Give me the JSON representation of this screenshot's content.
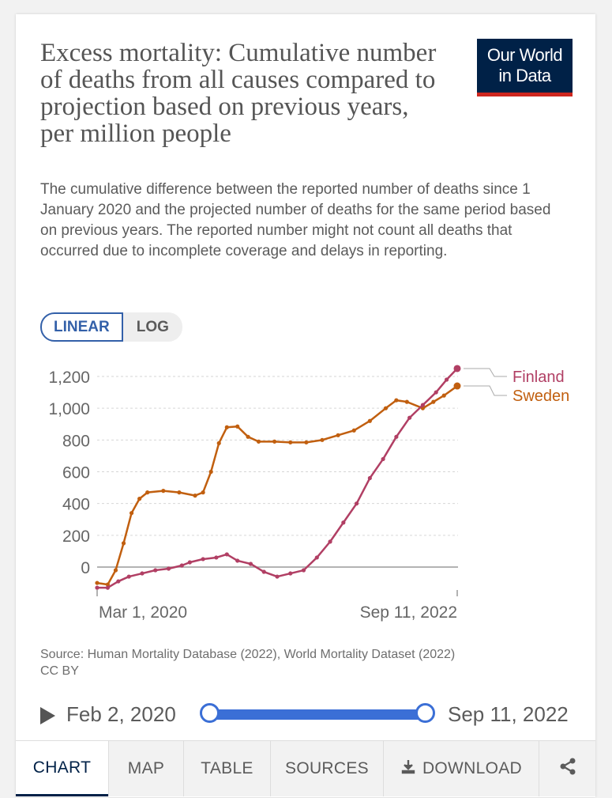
{
  "header": {
    "title": "Excess mortality: Cumulative number of deaths from all causes compared to projection based on previous years, per million people",
    "subtitle": "The cumulative difference between the reported number of deaths since 1 January 2020 and the projected number of deaths for the same period based on previous years. The reported number might not count all deaths that occurred due to incomplete coverage and delays in reporting.",
    "logo_line1": "Our World",
    "logo_line2": "in Data"
  },
  "scale_toggle": {
    "linear_label": "LINEAR",
    "log_label": "LOG",
    "selected": "LINEAR"
  },
  "chart_data": {
    "type": "line",
    "title": "Excess mortality: Cumulative number of deaths from all causes compared to projection based on previous years, per million people",
    "ylim": [
      -150,
      1300
    ],
    "yticks": [
      0,
      200,
      400,
      600,
      800,
      1000,
      1200
    ],
    "ytick_labels": [
      "0",
      "200",
      "400",
      "600",
      "800",
      "1,000",
      "1,200"
    ],
    "x_start": "2020-02-02",
    "x_end": "2022-09-11",
    "xtick_labels": [
      "Mar 1, 2020",
      "Sep 11, 2022"
    ],
    "grid": true,
    "legend_placement": "right",
    "series": [
      {
        "name": "Sweden",
        "color": "#c15f0f",
        "points": [
          [
            "2020-02-02",
            -100
          ],
          [
            "2020-03-01",
            -110
          ],
          [
            "2020-03-22",
            -20
          ],
          [
            "2020-04-12",
            150
          ],
          [
            "2020-05-03",
            340
          ],
          [
            "2020-05-24",
            430
          ],
          [
            "2020-06-14",
            470
          ],
          [
            "2020-07-26",
            480
          ],
          [
            "2020-09-06",
            470
          ],
          [
            "2020-10-18",
            450
          ],
          [
            "2020-11-08",
            470
          ],
          [
            "2020-11-29",
            600
          ],
          [
            "2020-12-20",
            780
          ],
          [
            "2021-01-10",
            880
          ],
          [
            "2021-02-07",
            885
          ],
          [
            "2021-03-07",
            820
          ],
          [
            "2021-04-04",
            790
          ],
          [
            "2021-05-16",
            790
          ],
          [
            "2021-06-27",
            785
          ],
          [
            "2021-08-08",
            785
          ],
          [
            "2021-09-19",
            800
          ],
          [
            "2021-10-31",
            830
          ],
          [
            "2021-12-12",
            860
          ],
          [
            "2022-01-23",
            920
          ],
          [
            "2022-03-06",
            1000
          ],
          [
            "2022-04-03",
            1050
          ],
          [
            "2022-05-01",
            1040
          ],
          [
            "2022-06-12",
            1000
          ],
          [
            "2022-07-10",
            1040
          ],
          [
            "2022-08-07",
            1080
          ],
          [
            "2022-09-11",
            1140
          ]
        ]
      },
      {
        "name": "Finland",
        "color": "#b13f64",
        "points": [
          [
            "2020-02-02",
            -130
          ],
          [
            "2020-03-01",
            -130
          ],
          [
            "2020-03-29",
            -90
          ],
          [
            "2020-04-26",
            -60
          ],
          [
            "2020-05-31",
            -40
          ],
          [
            "2020-07-05",
            -20
          ],
          [
            "2020-08-09",
            -10
          ],
          [
            "2020-09-13",
            10
          ],
          [
            "2020-10-04",
            30
          ],
          [
            "2020-11-08",
            50
          ],
          [
            "2020-12-13",
            60
          ],
          [
            "2021-01-10",
            80
          ],
          [
            "2021-02-07",
            40
          ],
          [
            "2021-03-14",
            20
          ],
          [
            "2021-04-18",
            -30
          ],
          [
            "2021-05-23",
            -60
          ],
          [
            "2021-06-27",
            -40
          ],
          [
            "2021-08-01",
            -20
          ],
          [
            "2021-09-05",
            60
          ],
          [
            "2021-10-10",
            160
          ],
          [
            "2021-11-14",
            280
          ],
          [
            "2021-12-19",
            400
          ],
          [
            "2022-01-23",
            560
          ],
          [
            "2022-02-27",
            680
          ],
          [
            "2022-04-03",
            820
          ],
          [
            "2022-05-08",
            940
          ],
          [
            "2022-06-12",
            1020
          ],
          [
            "2022-07-17",
            1100
          ],
          [
            "2022-08-14",
            1180
          ],
          [
            "2022-09-11",
            1250
          ]
        ]
      }
    ]
  },
  "source": {
    "text": "Source: Human Mortality Database (2022), World Mortality Dataset (2022)",
    "license": "CC BY"
  },
  "timeline": {
    "start_label": "Feb 2, 2020",
    "end_label": "Sep 11, 2022",
    "start_fraction": 0,
    "end_fraction": 1
  },
  "tabs": {
    "chart": "CHART",
    "map": "MAP",
    "table": "TABLE",
    "sources": "SOURCES",
    "download": "DOWNLOAD",
    "selected": "CHART"
  },
  "icons": {
    "play": "play-icon",
    "download": "download-icon",
    "share": "share-icon"
  }
}
